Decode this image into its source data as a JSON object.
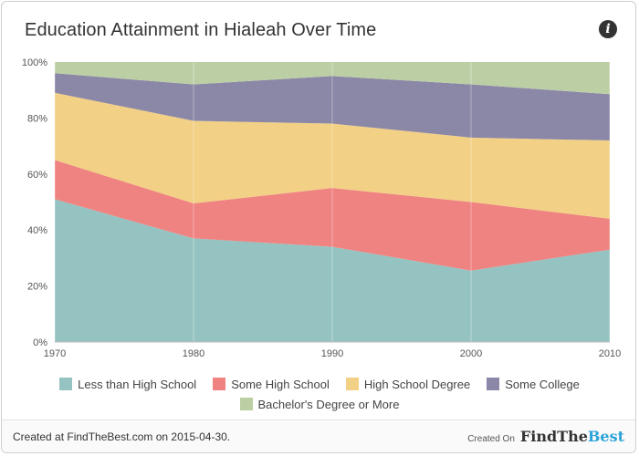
{
  "header": {
    "title": "Education Attainment in Hialeah Over Time",
    "info_icon": "info-icon"
  },
  "footer": {
    "created_text": "Created at FindTheBest.com on 2015-04-30.",
    "created_on_label": "Created On",
    "brand_main": "FindThe",
    "brand_accent": "Best",
    "brand_accent_color": "#2aa3d8"
  },
  "chart_data": {
    "type": "area",
    "stacked": true,
    "x": [
      1970,
      1980,
      1990,
      2000,
      2010
    ],
    "x_tick_labels": [
      "1970",
      "1980",
      "1990",
      "2000",
      "2010"
    ],
    "y_tick_labels": [
      "0%",
      "20%",
      "40%",
      "60%",
      "80%",
      "100%"
    ],
    "ylim": [
      0,
      100
    ],
    "grid": true,
    "legend_position": "bottom",
    "series": [
      {
        "name": "Less than High School",
        "color": "#95c3c1",
        "values": [
          51,
          37,
          34,
          25.5,
          33
        ]
      },
      {
        "name": "Some High School",
        "color": "#ef8381",
        "values": [
          14,
          12.5,
          21,
          24.5,
          11
        ]
      },
      {
        "name": "High School Degree",
        "color": "#f2d086",
        "values": [
          24,
          29.5,
          23,
          23,
          28
        ]
      },
      {
        "name": "Some College",
        "color": "#8b87a7",
        "values": [
          7,
          13,
          17,
          19,
          16.5
        ]
      },
      {
        "name": "Bachelor's Degree or More",
        "color": "#bccfa4",
        "values": [
          4,
          8,
          5,
          8,
          11.5
        ]
      }
    ]
  }
}
